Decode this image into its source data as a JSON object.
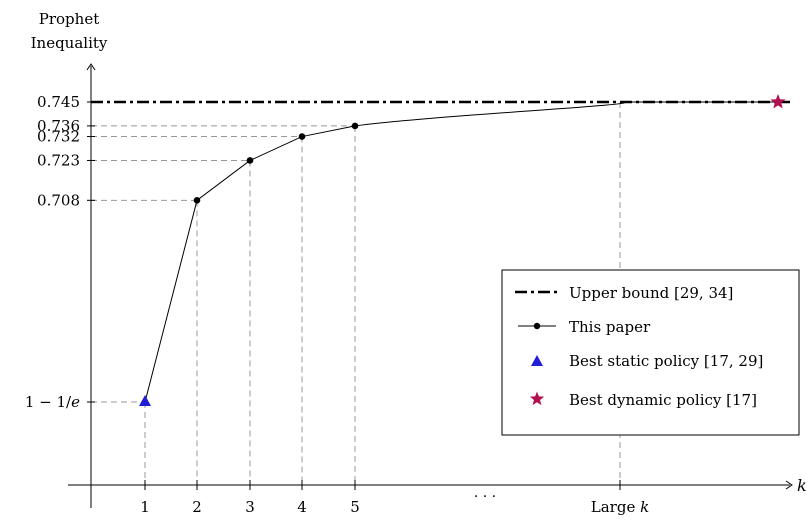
{
  "chart_data": {
    "type": "line",
    "ylabel_lines": [
      "Prophet",
      "Inequality"
    ],
    "xlabel": "k",
    "x_ticks": [
      "1",
      "2",
      "3",
      "4",
      "5",
      "Large k"
    ],
    "x_ellipsis": ". . .",
    "y_ticks": [
      {
        "label": "1 − 1/e",
        "value": 0.6321
      },
      {
        "label": "0.708",
        "value": 0.708
      },
      {
        "label": "0.723",
        "value": 0.723
      },
      {
        "label": "0.732",
        "value": 0.732
      },
      {
        "label": "0.736",
        "value": 0.736
      },
      {
        "label": "0.745",
        "value": 0.745
      }
    ],
    "series": [
      {
        "name": "Upper bound [29, 34]",
        "style": "dash-dot",
        "color": "#000000",
        "value": 0.745
      },
      {
        "name": "This paper",
        "style": "line-markers",
        "color": "#000000",
        "points": [
          {
            "x": "1",
            "y": 0.6321
          },
          {
            "x": "2",
            "y": 0.708
          },
          {
            "x": "3",
            "y": 0.723
          },
          {
            "x": "4",
            "y": 0.732
          },
          {
            "x": "5",
            "y": 0.736
          },
          {
            "x": "Large k",
            "y": 0.745
          }
        ]
      },
      {
        "name": "Best static policy [17, 29]",
        "style": "triangle",
        "color": "#1f1fd6",
        "points": [
          {
            "x": "1",
            "y": 0.6321
          }
        ]
      },
      {
        "name": "Best dynamic policy [17]",
        "style": "star",
        "color": "#b0104e",
        "points": [
          {
            "x": "Large k",
            "y": 0.745
          }
        ]
      }
    ]
  }
}
